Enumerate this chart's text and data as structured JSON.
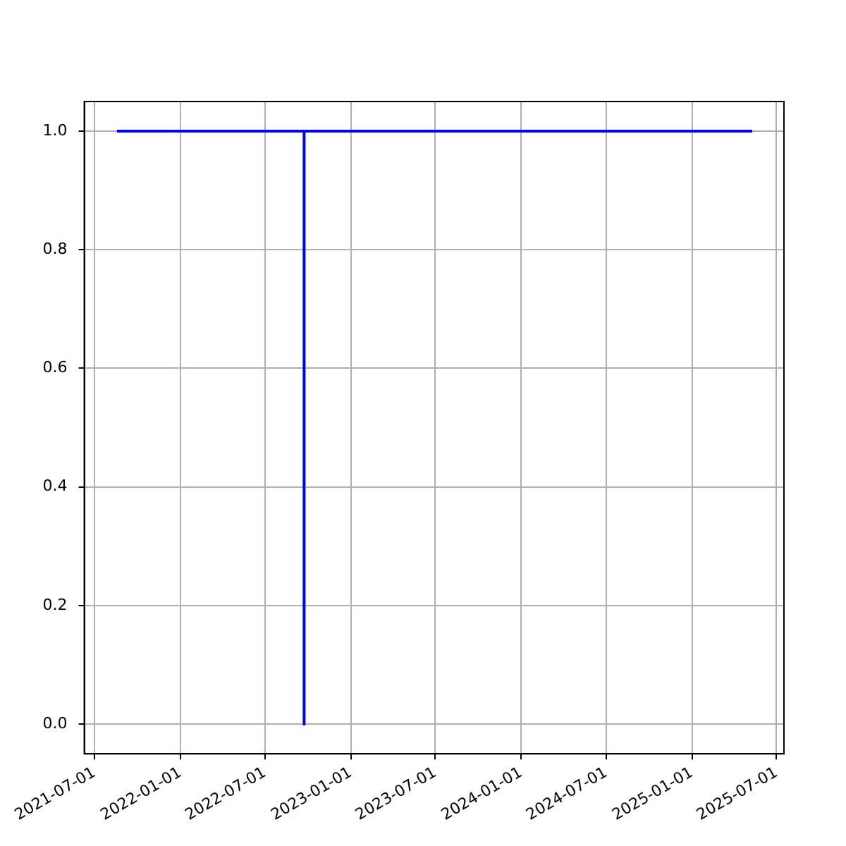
{
  "chart_data": {
    "type": "line",
    "x": [
      "2021-08-18",
      "2022-09-23",
      "2022-09-23",
      "2022-09-23",
      "2025-05-10"
    ],
    "series": [
      {
        "color": "#0000ff",
        "values": [
          1,
          1,
          0,
          1,
          1
        ]
      }
    ],
    "xlim": [
      "2021-06-09",
      "2025-07-17"
    ],
    "xticks": [
      "2021-07-01",
      "2022-01-01",
      "2022-07-01",
      "2023-01-01",
      "2023-07-01",
      "2024-01-01",
      "2024-07-01",
      "2025-01-01",
      "2025-07-01"
    ],
    "ylim": [
      -0.05,
      1.05
    ],
    "yticks": [
      {
        "value": 0,
        "label": "0.0"
      },
      {
        "value": 0.2,
        "label": "0.2"
      },
      {
        "value": 0.4,
        "label": "0.4"
      },
      {
        "value": 0.6,
        "label": "0.6"
      },
      {
        "value": 0.8,
        "label": "0.8"
      },
      {
        "value": 1,
        "label": "1.0"
      }
    ],
    "grid": true,
    "legend": false,
    "marker": "none",
    "line_style": "solid"
  }
}
